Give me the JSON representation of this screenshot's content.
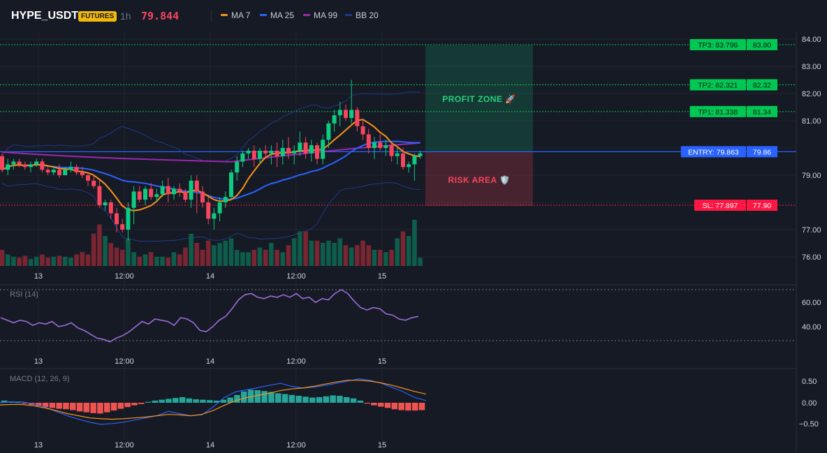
{
  "header": {
    "symbol": "HYPE_USDT",
    "market_badge": "FUTURES",
    "timeframe": "1h",
    "last_price": "79.844",
    "indicators": [
      {
        "label": "MA 7",
        "color": "#f7931a"
      },
      {
        "label": "MA 25",
        "color": "#2962ff"
      },
      {
        "label": "MA 99",
        "color": "#9c27b0"
      },
      {
        "label": "BB 20",
        "color": "#1e3a8a"
      }
    ]
  },
  "colors": {
    "background": "#161a25",
    "up": "#0ecb81",
    "down": "#f6465d",
    "entry": "#2962ff",
    "take_profit": "#00c853",
    "stop_loss": "#ff1744"
  },
  "price_axis": {
    "ticks": [
      "84.00",
      "83.00",
      "82.00",
      "81.00",
      "79.00",
      "77.00",
      "76.00"
    ]
  },
  "time_axis": {
    "labels": [
      "13",
      "12:00",
      "14",
      "12:00",
      "15"
    ]
  },
  "trade": {
    "profit_zone_label": "PROFIT ZONE 🚀",
    "risk_area_label": "RISK AREA 🛡️",
    "levels": [
      {
        "tag": "TP3: 83.796",
        "axis": "83.80",
        "price": 83.796,
        "kind": "tp"
      },
      {
        "tag": "TP2: 82.321",
        "axis": "82.32",
        "price": 82.321,
        "kind": "tp"
      },
      {
        "tag": "TP1: 81.338",
        "axis": "81.34",
        "price": 81.338,
        "kind": "tp"
      },
      {
        "tag": "ENTRY: 79.863",
        "axis": "79.86",
        "price": 79.863,
        "kind": "entry"
      },
      {
        "tag": "SL: 77.897",
        "axis": "77.90",
        "price": 77.897,
        "kind": "sl"
      }
    ]
  },
  "rsi": {
    "title": "RSI (14)",
    "ticks": [
      "60.00",
      "40.00"
    ],
    "upper": 70,
    "lower": 30
  },
  "macd": {
    "title": "MACD (12, 26, 9)",
    "ticks": [
      "0.50",
      "0.00",
      "−0.50"
    ]
  },
  "chart_data": {
    "type": "candlestick",
    "x_start": "13 (hourly)",
    "candles": [
      [
        79.7,
        79.8,
        79.1,
        79.2
      ],
      [
        79.2,
        79.6,
        79.0,
        79.4
      ],
      [
        79.4,
        79.6,
        79.2,
        79.5
      ],
      [
        79.5,
        79.6,
        79.3,
        79.4
      ],
      [
        79.4,
        79.5,
        79.2,
        79.3
      ],
      [
        79.3,
        79.5,
        79.1,
        79.4
      ],
      [
        79.4,
        79.6,
        79.3,
        79.5
      ],
      [
        79.5,
        79.6,
        79.1,
        79.2
      ],
      [
        79.2,
        79.3,
        79.0,
        79.1
      ],
      [
        79.1,
        79.3,
        79.0,
        79.2
      ],
      [
        79.2,
        79.4,
        78.9,
        79.0
      ],
      [
        79.0,
        79.3,
        79.0,
        79.2
      ],
      [
        79.2,
        79.5,
        79.1,
        79.3
      ],
      [
        79.3,
        79.4,
        79.0,
        79.1
      ],
      [
        79.1,
        79.3,
        78.9,
        79.0
      ],
      [
        79.0,
        79.1,
        78.6,
        78.8
      ],
      [
        78.8,
        79.0,
        78.5,
        78.6
      ],
      [
        78.6,
        78.8,
        77.8,
        77.9
      ],
      [
        77.9,
        78.1,
        77.7,
        78.0
      ],
      [
        78.0,
        78.1,
        77.4,
        77.6
      ],
      [
        77.6,
        77.8,
        76.9,
        77.2
      ],
      [
        77.2,
        77.4,
        76.9,
        77.0
      ],
      [
        77.0,
        78.0,
        76.6,
        77.8
      ],
      [
        77.8,
        78.6,
        77.2,
        78.4
      ],
      [
        78.4,
        78.6,
        78.0,
        78.1
      ],
      [
        78.1,
        78.6,
        77.9,
        78.5
      ],
      [
        78.5,
        78.7,
        78.1,
        78.2
      ],
      [
        78.2,
        78.5,
        78.0,
        78.3
      ],
      [
        78.3,
        78.8,
        78.2,
        78.6
      ],
      [
        78.6,
        78.9,
        78.0,
        78.3
      ],
      [
        78.3,
        78.6,
        78.1,
        78.5
      ],
      [
        78.5,
        78.7,
        78.2,
        78.4
      ],
      [
        78.4,
        78.5,
        78.0,
        78.1
      ],
      [
        78.1,
        79.0,
        77.8,
        78.8
      ],
      [
        78.8,
        79.0,
        77.6,
        78.4
      ],
      [
        78.4,
        78.6,
        77.8,
        78.0
      ],
      [
        78.0,
        78.2,
        77.2,
        77.4
      ],
      [
        77.4,
        77.8,
        77.0,
        77.6
      ],
      [
        77.6,
        78.2,
        77.3,
        78.0
      ],
      [
        78.0,
        78.4,
        77.8,
        78.2
      ],
      [
        78.2,
        79.2,
        78.1,
        79.1
      ],
      [
        79.1,
        79.7,
        78.8,
        79.5
      ],
      [
        79.5,
        79.9,
        79.3,
        79.8
      ],
      [
        79.8,
        80.0,
        79.6,
        79.9
      ],
      [
        79.9,
        80.1,
        79.3,
        79.6
      ],
      [
        79.6,
        80.0,
        79.4,
        79.9
      ],
      [
        79.9,
        80.1,
        79.6,
        79.8
      ],
      [
        79.8,
        80.1,
        79.4,
        79.9
      ],
      [
        79.9,
        80.2,
        79.3,
        79.7
      ],
      [
        79.7,
        80.3,
        79.4,
        80.0
      ],
      [
        80.0,
        80.4,
        79.6,
        79.8
      ],
      [
        79.8,
        80.1,
        79.4,
        79.9
      ],
      [
        79.9,
        80.6,
        79.7,
        80.2
      ],
      [
        80.2,
        80.4,
        79.6,
        79.8
      ],
      [
        79.8,
        80.3,
        79.5,
        80.1
      ],
      [
        80.1,
        80.2,
        79.4,
        79.6
      ],
      [
        79.6,
        80.5,
        79.4,
        80.3
      ],
      [
        80.3,
        81.0,
        80.0,
        80.9
      ],
      [
        80.9,
        81.4,
        80.6,
        81.2
      ],
      [
        81.2,
        81.7,
        80.8,
        81.4
      ],
      [
        81.4,
        81.6,
        81.0,
        81.1
      ],
      [
        81.1,
        82.5,
        80.9,
        81.4
      ],
      [
        81.4,
        81.5,
        80.6,
        80.8
      ],
      [
        80.8,
        81.0,
        80.3,
        80.5
      ],
      [
        80.5,
        80.7,
        79.8,
        80.0
      ],
      [
        80.0,
        80.4,
        79.6,
        80.2
      ],
      [
        80.2,
        80.5,
        79.9,
        80.0
      ],
      [
        80.0,
        80.3,
        79.7,
        80.1
      ],
      [
        80.1,
        80.2,
        79.5,
        79.7
      ],
      [
        79.7,
        80.0,
        79.4,
        79.8
      ],
      [
        79.8,
        80.0,
        79.2,
        79.3
      ],
      [
        79.3,
        79.5,
        79.1,
        79.4
      ],
      [
        79.4,
        79.8,
        78.8,
        79.7
      ],
      [
        79.7,
        79.9,
        79.6,
        79.8
      ]
    ],
    "volume": [
      0.35,
      0.25,
      0.2,
      0.18,
      0.22,
      0.15,
      0.2,
      0.25,
      0.18,
      0.2,
      0.22,
      0.2,
      0.18,
      0.25,
      0.3,
      0.25,
      0.7,
      0.9,
      0.65,
      0.5,
      0.4,
      0.35,
      0.6,
      0.3,
      0.2,
      0.25,
      0.3,
      0.2,
      0.2,
      0.18,
      0.3,
      0.25,
      0.4,
      0.7,
      0.5,
      0.35,
      0.55,
      0.45,
      0.5,
      0.55,
      0.6,
      0.35,
      0.3,
      0.3,
      0.35,
      0.4,
      0.35,
      0.5,
      0.35,
      0.3,
      0.45,
      0.6,
      0.75,
      0.75,
      0.55,
      0.55,
      0.5,
      0.55,
      0.5,
      0.6,
      0.45,
      0.4,
      0.45,
      0.55,
      0.45,
      0.35,
      0.35,
      0.3,
      0.35,
      0.6,
      0.75,
      0.65,
      1.0,
      0.18
    ]
  }
}
